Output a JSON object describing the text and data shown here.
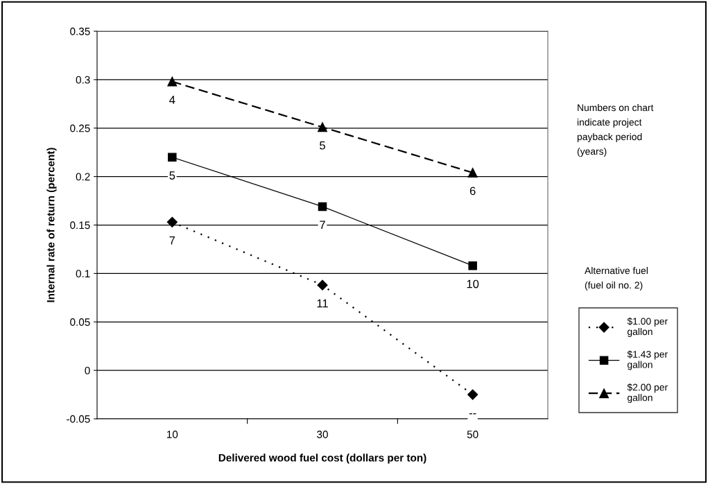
{
  "chart_data": {
    "type": "line",
    "xlabel": "Delivered wood fuel cost (dollars per ton)",
    "ylabel": "Internal rate of return (percent)",
    "categories": [
      "10",
      "30",
      "50"
    ],
    "series": [
      {
        "name": "$1.00 per gallon",
        "color": "#000000",
        "values": [
          0.153,
          0.088,
          -0.025
        ],
        "marker": "diamond",
        "line_style": "dotted"
      },
      {
        "name": "$1.43 per gallon",
        "color": "#000000",
        "values": [
          0.22,
          0.169,
          0.108
        ],
        "marker": "square",
        "line_style": "solid"
      },
      {
        "name": "$2.00 per gallon",
        "color": "#000000",
        "values": [
          0.298,
          0.251,
          0.204
        ],
        "marker": "triangle",
        "line_style": "dashed"
      }
    ],
    "ylim": [
      -0.05,
      0.35
    ],
    "yticks": [
      -0.05,
      0,
      0.05,
      0.1,
      0.15,
      0.2,
      0.25,
      0.3,
      0.35
    ],
    "grid": "y",
    "legend": "right",
    "legend_title": "Alternative fuel\n(fuel oil no. 2)",
    "annotations": [
      "Numbers on chart\nindicate project\npayback period\n(years)",
      {
        "text": "7",
        "x": "10",
        "y": 0.153
      },
      {
        "text": "11",
        "x": "30",
        "y": 0.088
      },
      {
        "text": "--",
        "x": "50",
        "y": -0.025
      },
      {
        "text": "5",
        "x": "10",
        "y": 0.22
      },
      {
        "text": "7",
        "x": "30",
        "y": 0.169
      },
      {
        "text": "10",
        "x": "50",
        "y": 0.108
      },
      {
        "text": "4",
        "x": "10",
        "y": 0.298
      },
      {
        "text": "5",
        "x": "30",
        "y": 0.251
      },
      {
        "text": "6",
        "x": "50",
        "y": 0.204
      }
    ]
  }
}
